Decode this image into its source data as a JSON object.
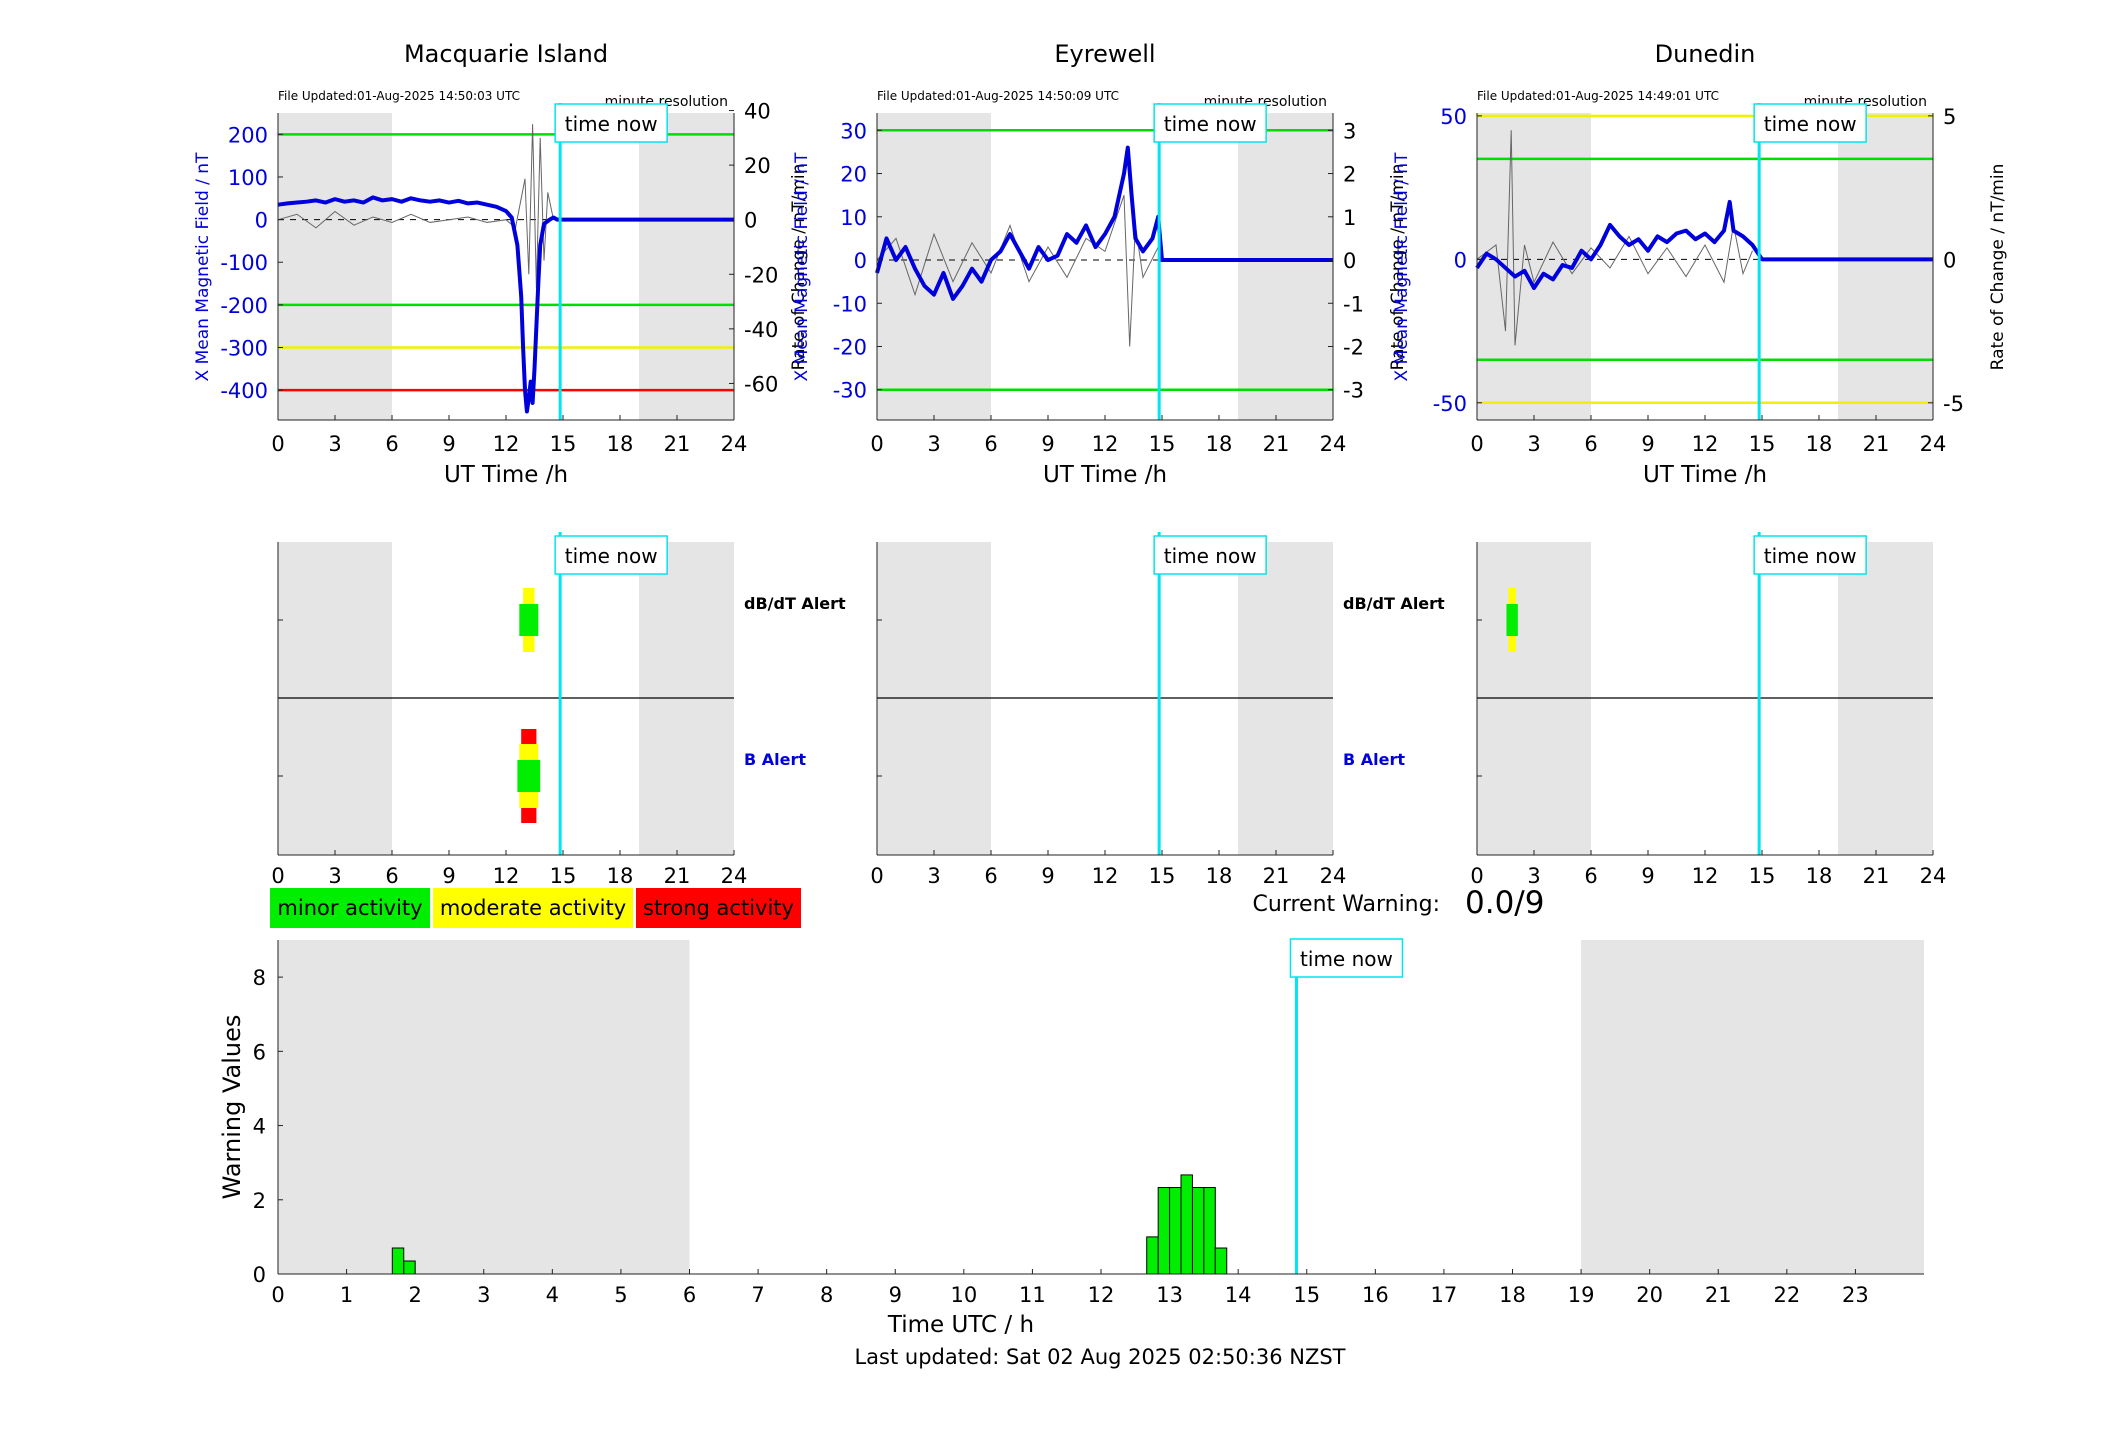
{
  "stations": [
    {
      "name": "Macquarie Island",
      "file_updated": "File Updated:01-Aug-2025 14:50:03 UTC",
      "resolution": "minute resolution",
      "left_ylabel": "X Mean Magnetic Field / nT",
      "right_ylabel": "Rate of Change / nT/min",
      "ylim_left": [
        -470,
        250
      ],
      "ylim_right": [
        -73.4,
        39.1
      ],
      "left_ticks": [
        -400,
        -300,
        -200,
        -100,
        0,
        100,
        200
      ],
      "right_ticks": [
        -60,
        -40,
        -20,
        0,
        20,
        40
      ],
      "thresholds": [
        {
          "value": 200,
          "color": "#00dd00"
        },
        {
          "value": -200,
          "color": "#00dd00"
        },
        {
          "value": -300,
          "color": "#f0f000"
        },
        {
          "value": -400,
          "color": "#ff0000"
        }
      ],
      "field_series": [
        [
          0,
          35
        ],
        [
          0.5,
          38
        ],
        [
          1,
          40
        ],
        [
          1.5,
          42
        ],
        [
          2,
          45
        ],
        [
          2.5,
          40
        ],
        [
          3,
          48
        ],
        [
          3.5,
          42
        ],
        [
          4,
          45
        ],
        [
          4.5,
          40
        ],
        [
          5,
          52
        ],
        [
          5.5,
          45
        ],
        [
          6,
          48
        ],
        [
          6.5,
          42
        ],
        [
          7,
          50
        ],
        [
          7.5,
          45
        ],
        [
          8,
          42
        ],
        [
          8.5,
          45
        ],
        [
          9,
          40
        ],
        [
          9.5,
          44
        ],
        [
          10,
          38
        ],
        [
          10.5,
          40
        ],
        [
          11,
          35
        ],
        [
          11.5,
          30
        ],
        [
          12,
          20
        ],
        [
          12.3,
          5
        ],
        [
          12.6,
          -60
        ],
        [
          12.8,
          -180
        ],
        [
          12.9,
          -300
        ],
        [
          13.0,
          -400
        ],
        [
          13.1,
          -450
        ],
        [
          13.2,
          -420
        ],
        [
          13.3,
          -380
        ],
        [
          13.4,
          -430
        ],
        [
          13.5,
          -350
        ],
        [
          13.6,
          -250
        ],
        [
          13.7,
          -150
        ],
        [
          13.8,
          -60
        ],
        [
          14.0,
          -10
        ],
        [
          14.3,
          0
        ],
        [
          14.5,
          5
        ],
        [
          14.7,
          0
        ],
        [
          15,
          0
        ],
        [
          24,
          0
        ]
      ],
      "rate_series": [
        [
          0,
          0
        ],
        [
          1,
          2
        ],
        [
          2,
          -3
        ],
        [
          3,
          3
        ],
        [
          4,
          -2
        ],
        [
          5,
          1
        ],
        [
          6,
          -1
        ],
        [
          7,
          2
        ],
        [
          8,
          -1
        ],
        [
          9,
          0
        ],
        [
          10,
          1
        ],
        [
          11,
          -1
        ],
        [
          12,
          0
        ],
        [
          12.5,
          -3
        ],
        [
          13,
          15
        ],
        [
          13.2,
          -20
        ],
        [
          13.4,
          35
        ],
        [
          13.6,
          -25
        ],
        [
          13.8,
          30
        ],
        [
          14,
          -15
        ],
        [
          14.2,
          10
        ],
        [
          14.5,
          0
        ]
      ],
      "dbdt_alert": [
        {
          "start": 12.9,
          "end": 13.5,
          "level": "moderate"
        },
        {
          "start": 12.7,
          "end": 13.7,
          "level": "minor"
        }
      ],
      "b_alert": [
        {
          "start": 12.8,
          "end": 13.6,
          "level": "strong"
        },
        {
          "start": 12.7,
          "end": 13.7,
          "level": "moderate"
        },
        {
          "start": 12.6,
          "end": 13.8,
          "level": "minor"
        }
      ]
    },
    {
      "name": "Eyrewell",
      "file_updated": "File Updated:01-Aug-2025 14:50:09 UTC",
      "resolution": "minute resolution",
      "left_ylabel": "X Mean Magnetic Field / nT",
      "right_ylabel": "Rate of Change / nT/min",
      "ylim_left": [
        -37,
        34
      ],
      "ylim_right": [
        -3.7,
        3.4
      ],
      "left_ticks": [
        -30,
        -20,
        -10,
        0,
        10,
        20,
        30
      ],
      "right_ticks": [
        -3,
        -2,
        -1,
        0,
        1,
        2,
        3
      ],
      "thresholds": [
        {
          "value": 30,
          "color": "#00dd00"
        },
        {
          "value": -30,
          "color": "#00dd00"
        }
      ],
      "field_series": [
        [
          0,
          -3
        ],
        [
          0.5,
          5
        ],
        [
          1,
          0
        ],
        [
          1.5,
          3
        ],
        [
          2,
          -2
        ],
        [
          2.5,
          -6
        ],
        [
          3,
          -8
        ],
        [
          3.5,
          -3
        ],
        [
          4,
          -9
        ],
        [
          4.5,
          -6
        ],
        [
          5,
          -2
        ],
        [
          5.5,
          -5
        ],
        [
          6,
          0
        ],
        [
          6.5,
          2
        ],
        [
          7,
          6
        ],
        [
          7.5,
          2
        ],
        [
          8,
          -2
        ],
        [
          8.5,
          3
        ],
        [
          9,
          0
        ],
        [
          9.5,
          1
        ],
        [
          10,
          6
        ],
        [
          10.5,
          4
        ],
        [
          11,
          8
        ],
        [
          11.5,
          3
        ],
        [
          12,
          6
        ],
        [
          12.5,
          10
        ],
        [
          13,
          20
        ],
        [
          13.2,
          26
        ],
        [
          13.4,
          15
        ],
        [
          13.6,
          5
        ],
        [
          14,
          2
        ],
        [
          14.5,
          5
        ],
        [
          14.8,
          10
        ],
        [
          15,
          0
        ],
        [
          24,
          0
        ]
      ],
      "rate_series": [
        [
          0,
          0
        ],
        [
          1,
          0.5
        ],
        [
          2,
          -0.8
        ],
        [
          3,
          0.6
        ],
        [
          4,
          -0.5
        ],
        [
          5,
          0.4
        ],
        [
          6,
          -0.3
        ],
        [
          7,
          0.8
        ],
        [
          8,
          -0.5
        ],
        [
          9,
          0.3
        ],
        [
          10,
          -0.4
        ],
        [
          11,
          0.5
        ],
        [
          12,
          0.2
        ],
        [
          13,
          1.5
        ],
        [
          13.3,
          -2.0
        ],
        [
          13.6,
          0.8
        ],
        [
          14,
          -0.4
        ],
        [
          14.8,
          0.3
        ]
      ],
      "dbdt_alert": [],
      "b_alert": []
    },
    {
      "name": "Dunedin",
      "file_updated": "File Updated:01-Aug-2025 14:49:01 UTC",
      "resolution": "minute resolution",
      "left_ylabel": "X Mean Magnetic Field / nT",
      "right_ylabel": "Rate of Change / nT/min",
      "ylim_left": [
        -56,
        51
      ],
      "ylim_right": [
        -5.6,
        5.1
      ],
      "left_ticks": [
        -50,
        0,
        50
      ],
      "right_ticks": [
        -5,
        0,
        5
      ],
      "thresholds": [
        {
          "value": 50,
          "color": "#f0f000"
        },
        {
          "value": 35,
          "color": "#00dd00"
        },
        {
          "value": -35,
          "color": "#00dd00"
        },
        {
          "value": -50,
          "color": "#f0f000"
        }
      ],
      "field_series": [
        [
          0,
          -3
        ],
        [
          0.5,
          2
        ],
        [
          1,
          0
        ],
        [
          1.5,
          -3
        ],
        [
          2,
          -6
        ],
        [
          2.5,
          -4
        ],
        [
          3,
          -10
        ],
        [
          3.5,
          -5
        ],
        [
          4,
          -7
        ],
        [
          4.5,
          -2
        ],
        [
          5,
          -3
        ],
        [
          5.5,
          3
        ],
        [
          6,
          0
        ],
        [
          6.5,
          5
        ],
        [
          7,
          12
        ],
        [
          7.5,
          8
        ],
        [
          8,
          5
        ],
        [
          8.5,
          7
        ],
        [
          9,
          3
        ],
        [
          9.5,
          8
        ],
        [
          10,
          6
        ],
        [
          10.5,
          9
        ],
        [
          11,
          10
        ],
        [
          11.5,
          7
        ],
        [
          12,
          9
        ],
        [
          12.5,
          6
        ],
        [
          13,
          10
        ],
        [
          13.3,
          20
        ],
        [
          13.5,
          10
        ],
        [
          14,
          8
        ],
        [
          14.5,
          5
        ],
        [
          15,
          0
        ],
        [
          24,
          0
        ]
      ],
      "rate_series": [
        [
          0,
          0
        ],
        [
          1,
          0.5
        ],
        [
          1.5,
          -2.5
        ],
        [
          1.8,
          4.5
        ],
        [
          2,
          -3
        ],
        [
          2.5,
          0.5
        ],
        [
          3,
          -0.8
        ],
        [
          4,
          0.6
        ],
        [
          5,
          -0.5
        ],
        [
          6,
          0.4
        ],
        [
          7,
          -0.3
        ],
        [
          8,
          0.8
        ],
        [
          9,
          -0.5
        ],
        [
          10,
          0.4
        ],
        [
          11,
          -0.6
        ],
        [
          12,
          0.5
        ],
        [
          13,
          -0.8
        ],
        [
          13.5,
          1.2
        ],
        [
          14,
          -0.5
        ],
        [
          14.5,
          0.3
        ]
      ],
      "dbdt_alert": [
        {
          "start": 1.65,
          "end": 2.05,
          "level": "moderate"
        },
        {
          "start": 1.55,
          "end": 2.15,
          "level": "minor"
        }
      ],
      "b_alert": []
    }
  ],
  "common": {
    "time_now_label": "time now",
    "time_now_hours": 14.85,
    "xlabel_top": "UT Time /h",
    "x_ticks": [
      0,
      3,
      6,
      9,
      12,
      15,
      18,
      21,
      24
    ],
    "night_shading": [
      [
        0,
        6
      ],
      [
        19,
        24
      ]
    ],
    "dbdt_alert_label": "dB/dT Alert",
    "b_alert_label": "B Alert"
  },
  "legend": [
    {
      "label": "minor activity",
      "color": "#00ee00"
    },
    {
      "label": "moderate activity",
      "color": "#ffff00"
    },
    {
      "label": "strong activity",
      "color": "#ff0000"
    }
  ],
  "current_warning": {
    "label": "Current Warning:",
    "value": "0.0/9"
  },
  "chart_data": {
    "type": "bar",
    "title": "",
    "xlabel": "Time UTC / h",
    "ylabel": "Warning Values",
    "xlim": [
      0,
      24
    ],
    "ylim": [
      0,
      9
    ],
    "y_ticks": [
      0,
      2,
      4,
      6,
      8
    ],
    "x_ticks": [
      0,
      1,
      2,
      3,
      4,
      5,
      6,
      7,
      8,
      9,
      10,
      11,
      12,
      13,
      14,
      15,
      16,
      17,
      18,
      19,
      20,
      21,
      22,
      23
    ],
    "bar_width_h": 0.1667,
    "bar_color": "#00ee00",
    "bars": [
      {
        "x": 1.75,
        "value": 0.7
      },
      {
        "x": 1.917,
        "value": 0.35
      },
      {
        "x": 12.75,
        "value": 1.0
      },
      {
        "x": 12.917,
        "value": 2.33
      },
      {
        "x": 13.083,
        "value": 2.33
      },
      {
        "x": 13.25,
        "value": 2.67
      },
      {
        "x": 13.417,
        "value": 2.33
      },
      {
        "x": 13.583,
        "value": 2.33
      },
      {
        "x": 13.75,
        "value": 0.7
      }
    ],
    "night_shading": [
      [
        0,
        6
      ],
      [
        19,
        24
      ]
    ]
  },
  "footer": {
    "last_updated": "Last updated: Sat 02 Aug 2025 02:50:36 NZST"
  }
}
